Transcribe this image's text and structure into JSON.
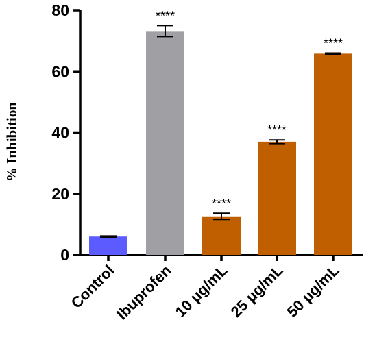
{
  "chart_data": {
    "type": "bar",
    "title": "",
    "xlabel": "",
    "ylabel": "% Inhibition",
    "ylim": [
      0,
      80
    ],
    "yticks": [
      "0",
      "20",
      "40",
      "60",
      "80"
    ],
    "categories": [
      "Control",
      "Ibuprofen",
      "10 μg/mL",
      "25 μg/mL",
      "50 μg/mL"
    ],
    "values": [
      6.0,
      73.2,
      12.6,
      37.0,
      65.8
    ],
    "errors": [
      0.2,
      1.8,
      1.0,
      0.6,
      0.2
    ],
    "significance": [
      "",
      "****",
      "****",
      "****",
      "****"
    ],
    "colors": [
      "#5B5BFF",
      "#A0A0A4",
      "#C05F00",
      "#C05F00",
      "#C05F00"
    ],
    "grid": false
  }
}
